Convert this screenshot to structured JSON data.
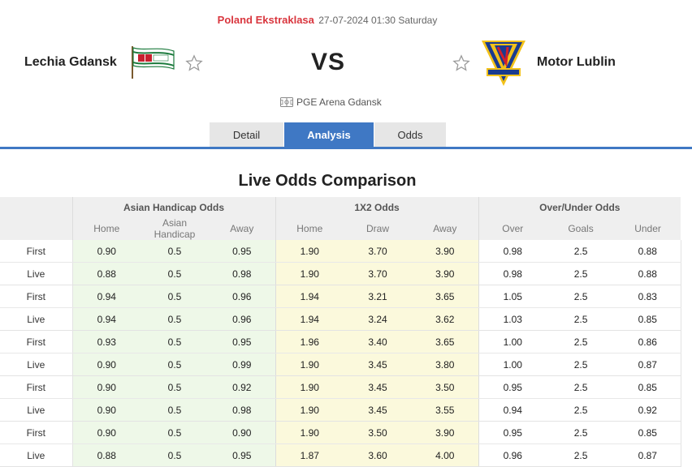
{
  "match": {
    "league": "Poland Ekstraklasa",
    "datetime": "27-07-2024 01:30 Saturday",
    "home_team": "Lechia Gdansk",
    "away_team": "Motor Lublin",
    "vs": "VS",
    "venue": "PGE Arena Gdansk"
  },
  "tabs": [
    {
      "label": "Detail",
      "active": false
    },
    {
      "label": "Analysis",
      "active": true
    },
    {
      "label": "Odds",
      "active": false
    }
  ],
  "section_title": "Live Odds Comparison",
  "table": {
    "groups": [
      "Asian Handicap Odds",
      "1X2 Odds",
      "Over/Under Odds"
    ],
    "subheaders": [
      "Home",
      "Asian Handicap",
      "Away",
      "Home",
      "Draw",
      "Away",
      "Over",
      "Goals",
      "Under"
    ],
    "rows": [
      {
        "label": "First",
        "values": [
          "0.90",
          "0.5",
          "0.95",
          "1.90",
          "3.70",
          "3.90",
          "0.98",
          "2.5",
          "0.88"
        ]
      },
      {
        "label": "Live",
        "values": [
          "0.88",
          "0.5",
          "0.98",
          "1.90",
          "3.70",
          "3.90",
          "0.98",
          "2.5",
          "0.88"
        ]
      },
      {
        "label": "First",
        "values": [
          "0.94",
          "0.5",
          "0.96",
          "1.94",
          "3.21",
          "3.65",
          "1.05",
          "2.5",
          "0.83"
        ]
      },
      {
        "label": "Live",
        "values": [
          "0.94",
          "0.5",
          "0.96",
          "1.94",
          "3.24",
          "3.62",
          "1.03",
          "2.5",
          "0.85"
        ]
      },
      {
        "label": "First",
        "values": [
          "0.93",
          "0.5",
          "0.95",
          "1.96",
          "3.40",
          "3.65",
          "1.00",
          "2.5",
          "0.86"
        ]
      },
      {
        "label": "Live",
        "values": [
          "0.90",
          "0.5",
          "0.99",
          "1.90",
          "3.45",
          "3.80",
          "1.00",
          "2.5",
          "0.87"
        ]
      },
      {
        "label": "First",
        "values": [
          "0.90",
          "0.5",
          "0.92",
          "1.90",
          "3.45",
          "3.50",
          "0.95",
          "2.5",
          "0.85"
        ]
      },
      {
        "label": "Live",
        "values": [
          "0.90",
          "0.5",
          "0.98",
          "1.90",
          "3.45",
          "3.55",
          "0.94",
          "2.5",
          "0.92"
        ]
      },
      {
        "label": "First",
        "values": [
          "0.90",
          "0.5",
          "0.90",
          "1.90",
          "3.50",
          "3.90",
          "0.95",
          "2.5",
          "0.85"
        ]
      },
      {
        "label": "Live",
        "values": [
          "0.88",
          "0.5",
          "0.95",
          "1.87",
          "3.60",
          "4.00",
          "0.96",
          "2.5",
          "0.87"
        ]
      }
    ]
  },
  "colors": {
    "accent": "#3f78c4",
    "league": "#d9363e",
    "asian_handicap_bg": "#eef8e8",
    "x12_bg": "#fbf9dc"
  },
  "icons": {
    "home_logo": "lechia-gdansk-logo",
    "away_logo": "motor-lublin-logo",
    "favorite": "star-outline-icon",
    "venue": "stadium-icon"
  }
}
